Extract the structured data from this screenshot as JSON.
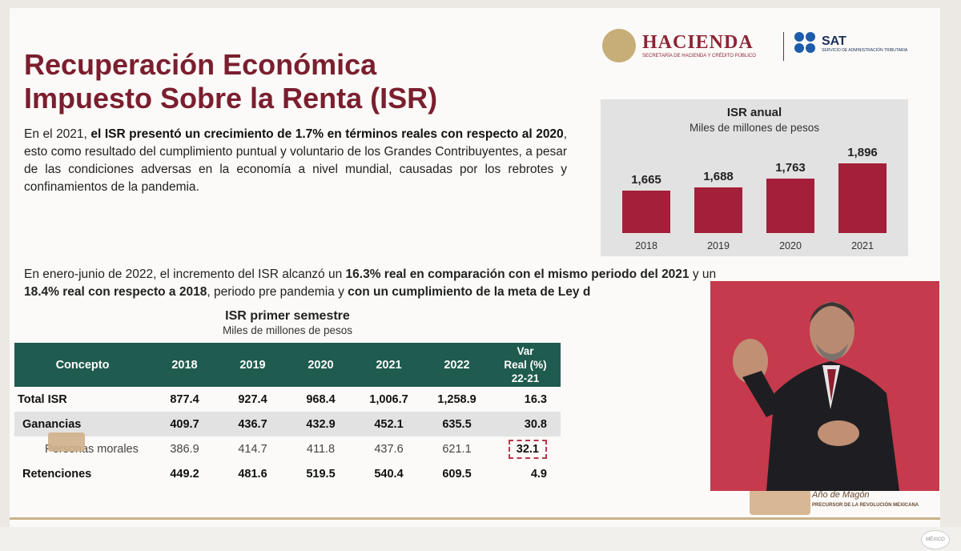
{
  "title": {
    "line1": "Recuperación Económica",
    "line2": "Impuesto Sobre la Renta (ISR)"
  },
  "logos": {
    "hacienda": "HACIENDA",
    "hacienda_sub": "SECRETARÍA DE HACIENDA Y CRÉDITO PÚBLICO",
    "sat": "SAT",
    "sat_sub": "SERVICIO DE ADMINISTRACIÓN TRIBUTARIA"
  },
  "paragraph1": {
    "t1": "En el 2021, ",
    "b1": "el ISR presentó un crecimiento de 1.7% en términos reales con respecto al 2020",
    "t2": ", esto como resultado del cumplimiento puntual y voluntario de los Grandes Contribuyentes, a pesar de las condiciones adversas en la economía a nivel mundial, causadas por los rebrotes y confinamientos de la pandemia."
  },
  "paragraph2": {
    "t1": "En enero-junio de 2022, el incremento del ISR alcanzó un ",
    "b1": "16.3% real en comparación con el mismo periodo del 2021",
    "t2": " y un",
    "b2": "18.4% real con respecto a 2018",
    "t3": ", periodo pre pandemia y ",
    "b3": "con un cumplimiento de la meta de Ley d"
  },
  "chart_data": {
    "type": "bar",
    "title": "ISR anual",
    "subtitle": "Miles de millones de pesos",
    "categories": [
      "2018",
      "2019",
      "2020",
      "2021"
    ],
    "values": [
      1665,
      1688,
      1763,
      1896
    ],
    "value_labels": [
      "1,665",
      "1,688",
      "1,763",
      "1,896"
    ],
    "color": "#a41f3a"
  },
  "table": {
    "title": "ISR primer semestre",
    "subtitle": "Miles de millones de pesos",
    "headers": [
      "Concepto",
      "2018",
      "2019",
      "2020",
      "2021",
      "2022"
    ],
    "var_header": [
      "Var",
      "Real (%)",
      "22-21"
    ],
    "rows": [
      [
        "Total ISR",
        "877.4",
        "927.4",
        "968.4",
        "1,006.7",
        "1,258.9",
        "16.3"
      ],
      [
        "Ganancias",
        "409.7",
        "436.7",
        "432.9",
        "452.1",
        "635.5",
        "30.8"
      ],
      [
        "Personas morales",
        "386.9",
        "414.7",
        "411.8",
        "437.6",
        "621.1",
        "32.1"
      ],
      [
        "Retenciones",
        "449.2",
        "481.6",
        "519.5",
        "540.4",
        "609.5",
        "4.9"
      ]
    ],
    "header_color": "#1f5b4f"
  },
  "emblem": {
    "text": "Año de Magón",
    "sub": "PRECURSOR DE LA REVOLUCIÓN MEXICANA"
  },
  "corner_logo": "MÉXICO"
}
